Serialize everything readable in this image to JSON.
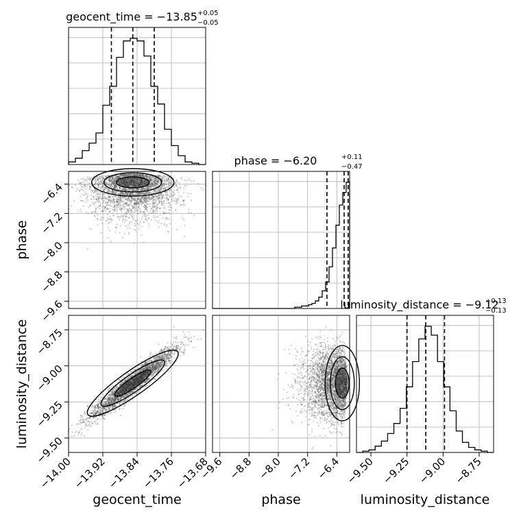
{
  "chart_data": {
    "type": "corner",
    "parameters": [
      "geocent_time",
      "phase",
      "luminosity_distance"
    ],
    "titles": [
      {
        "param": "geocent_time",
        "text": "geocent_time = −13.85",
        "plus": "+0.05",
        "minus": "−0.05"
      },
      {
        "param": "phase",
        "text": "phase = −6.20",
        "plus": "+0.11",
        "minus": "−0.47"
      },
      {
        "param": "luminosity_distance",
        "text": "luminosity_distance = −9.12",
        "plus": "+0.13",
        "minus": "−0.13"
      }
    ],
    "ranges": {
      "geocent_time": [
        -14.0,
        -13.68
      ],
      "phase": [
        -9.8,
        -6.05
      ],
      "luminosity_distance": [
        -9.6,
        -8.65
      ]
    },
    "ticks": {
      "geocent_time": {
        "values": [
          -14.0,
          -13.92,
          -13.84,
          -13.76,
          -13.68
        ],
        "labels": [
          "−14.00",
          "−13.92",
          "−13.84",
          "−13.76",
          "−13.68"
        ]
      },
      "phase": {
        "values": [
          -9.6,
          -8.8,
          -8.0,
          -7.2,
          -6.4
        ],
        "labels": [
          "−9.6",
          "−8.8",
          "−8.0",
          "−7.2",
          "−6.4"
        ]
      },
      "luminosity_distance": {
        "values": [
          -9.5,
          -9.25,
          -9.0,
          -8.75
        ],
        "labels": [
          "−9.50",
          "−9.25",
          "−9.00",
          "−8.75"
        ]
      }
    },
    "quantiles": {
      "geocent_time": [
        -13.9,
        -13.85,
        -13.8
      ],
      "phase": [
        -6.67,
        -6.2,
        -6.09
      ],
      "luminosity_distance": [
        -9.25,
        -9.12,
        -8.99
      ]
    },
    "histograms": {
      "geocent_time": [
        0.02,
        0.05,
        0.11,
        0.17,
        0.25,
        0.47,
        0.62,
        0.85,
        0.98,
        1.0,
        0.98,
        0.86,
        0.62,
        0.48,
        0.28,
        0.15,
        0.07,
        0.02,
        0.01,
        0.0
      ],
      "phase": [
        0.0,
        0.0,
        0.0,
        0.0,
        0.0,
        0.0,
        0.0,
        0.0,
        0.0,
        0.0,
        0.0,
        0.0,
        0.0,
        0.0,
        0.0,
        0.0,
        0.0,
        0.0,
        0.0,
        0.0,
        0.0,
        0.0,
        0.0,
        0.0,
        0.01,
        0.01,
        0.02,
        0.02,
        0.03,
        0.04,
        0.06,
        0.09,
        0.14,
        0.21,
        0.33,
        0.48,
        0.66,
        0.82,
        0.92,
        1.0
      ],
      "luminosity_distance": [
        0.0,
        0.01,
        0.02,
        0.05,
        0.09,
        0.15,
        0.23,
        0.35,
        0.52,
        0.72,
        0.9,
        1.0,
        0.93,
        0.72,
        0.52,
        0.33,
        0.17,
        0.08,
        0.04,
        0.02,
        0.01,
        0.0
      ]
    },
    "grid": true
  },
  "axes": {
    "x_labels": [
      "geocent_time",
      "phase",
      "luminosity_distance"
    ],
    "y_labels": [
      "phase",
      "luminosity_distance"
    ]
  }
}
